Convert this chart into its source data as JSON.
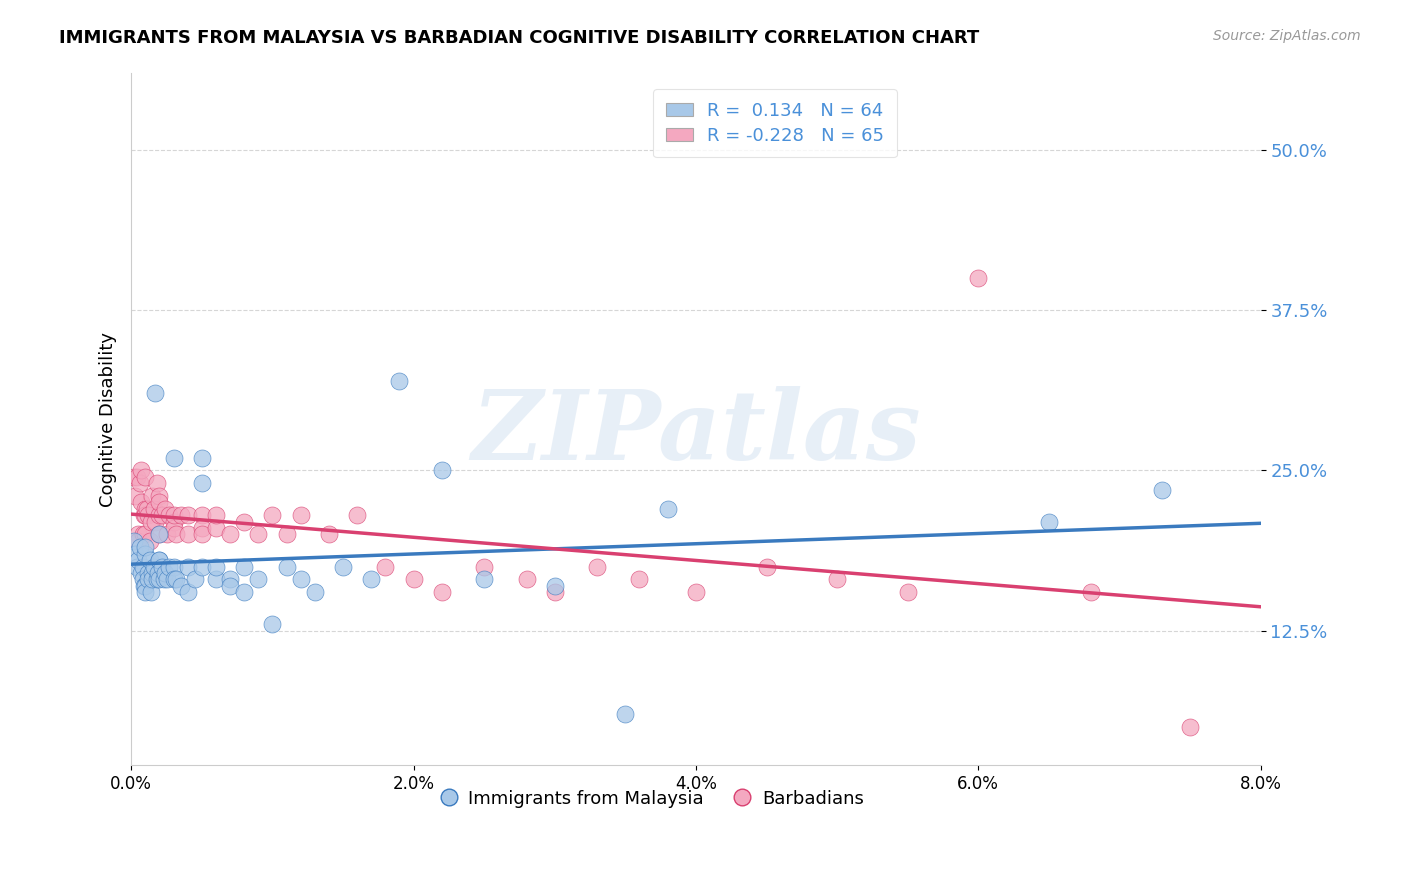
{
  "title": "IMMIGRANTS FROM MALAYSIA VS BARBADIAN COGNITIVE DISABILITY CORRELATION CHART",
  "source": "Source: ZipAtlas.com",
  "ylabel": "Cognitive Disability",
  "y_ticks": [
    0.125,
    0.25,
    0.375,
    0.5
  ],
  "y_tick_labels": [
    "12.5%",
    "25.0%",
    "37.5%",
    "50.0%"
  ],
  "x_range": [
    0.0,
    0.08
  ],
  "y_range": [
    0.02,
    0.56
  ],
  "legend_blue_r": "0.134",
  "legend_blue_n": "64",
  "legend_pink_r": "-0.228",
  "legend_pink_n": "65",
  "legend_label_blue": "Immigrants from Malaysia",
  "legend_label_pink": "Barbadians",
  "blue_color": "#a8c8e8",
  "pink_color": "#f4a8c0",
  "line_blue": "#3a7abf",
  "line_pink": "#d94070",
  "watermark": "ZIPatlas",
  "blue_x": [
    0.0002,
    0.0003,
    0.0004,
    0.0005,
    0.0006,
    0.0007,
    0.0008,
    0.0008,
    0.0009,
    0.001,
    0.001,
    0.001,
    0.001,
    0.0012,
    0.0012,
    0.0013,
    0.0014,
    0.0015,
    0.0015,
    0.0016,
    0.0017,
    0.0018,
    0.0019,
    0.002,
    0.002,
    0.002,
    0.002,
    0.0022,
    0.0023,
    0.0024,
    0.0025,
    0.0027,
    0.003,
    0.003,
    0.003,
    0.0032,
    0.0035,
    0.004,
    0.004,
    0.0045,
    0.005,
    0.005,
    0.005,
    0.006,
    0.006,
    0.007,
    0.007,
    0.008,
    0.008,
    0.009,
    0.01,
    0.011,
    0.012,
    0.013,
    0.015,
    0.017,
    0.019,
    0.022,
    0.025,
    0.03,
    0.035,
    0.038,
    0.065,
    0.073
  ],
  "blue_y": [
    0.195,
    0.185,
    0.175,
    0.18,
    0.19,
    0.17,
    0.175,
    0.165,
    0.16,
    0.185,
    0.16,
    0.155,
    0.19,
    0.17,
    0.165,
    0.18,
    0.155,
    0.17,
    0.165,
    0.175,
    0.31,
    0.165,
    0.17,
    0.165,
    0.18,
    0.2,
    0.18,
    0.175,
    0.165,
    0.17,
    0.165,
    0.175,
    0.175,
    0.165,
    0.26,
    0.165,
    0.16,
    0.155,
    0.175,
    0.165,
    0.26,
    0.175,
    0.24,
    0.165,
    0.175,
    0.165,
    0.16,
    0.155,
    0.175,
    0.165,
    0.13,
    0.175,
    0.165,
    0.155,
    0.175,
    0.165,
    0.32,
    0.25,
    0.165,
    0.16,
    0.06,
    0.22,
    0.21,
    0.235
  ],
  "pink_x": [
    0.0002,
    0.0003,
    0.0004,
    0.0005,
    0.0005,
    0.0006,
    0.0007,
    0.0007,
    0.0008,
    0.0009,
    0.001,
    0.001,
    0.001,
    0.001,
    0.0011,
    0.0012,
    0.0013,
    0.0014,
    0.0015,
    0.0016,
    0.0017,
    0.0018,
    0.002,
    0.002,
    0.002,
    0.002,
    0.0022,
    0.0024,
    0.0025,
    0.0027,
    0.003,
    0.003,
    0.003,
    0.0032,
    0.0035,
    0.004,
    0.004,
    0.005,
    0.005,
    0.005,
    0.006,
    0.006,
    0.007,
    0.008,
    0.009,
    0.01,
    0.011,
    0.012,
    0.014,
    0.016,
    0.018,
    0.02,
    0.022,
    0.025,
    0.028,
    0.03,
    0.033,
    0.036,
    0.04,
    0.045,
    0.05,
    0.055,
    0.06,
    0.068,
    0.075
  ],
  "pink_y": [
    0.245,
    0.23,
    0.245,
    0.2,
    0.195,
    0.24,
    0.225,
    0.25,
    0.2,
    0.215,
    0.245,
    0.22,
    0.2,
    0.215,
    0.22,
    0.215,
    0.195,
    0.21,
    0.23,
    0.22,
    0.21,
    0.24,
    0.23,
    0.215,
    0.2,
    0.225,
    0.215,
    0.22,
    0.2,
    0.215,
    0.21,
    0.205,
    0.215,
    0.2,
    0.215,
    0.215,
    0.2,
    0.215,
    0.205,
    0.2,
    0.205,
    0.215,
    0.2,
    0.21,
    0.2,
    0.215,
    0.2,
    0.215,
    0.2,
    0.215,
    0.175,
    0.165,
    0.155,
    0.175,
    0.165,
    0.155,
    0.175,
    0.165,
    0.155,
    0.175,
    0.165,
    0.155,
    0.4,
    0.155,
    0.05
  ]
}
